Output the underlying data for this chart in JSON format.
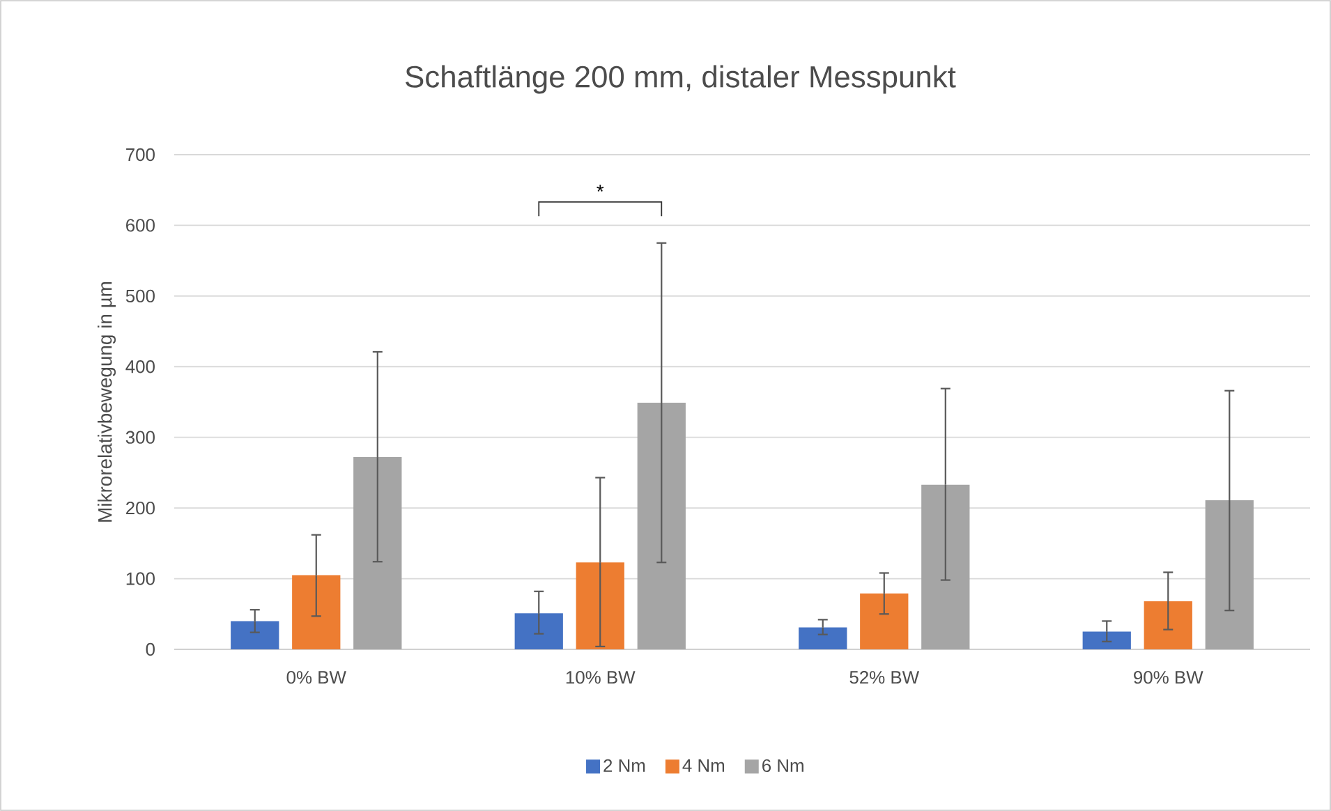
{
  "chart_data": {
    "type": "bar",
    "title": "Schaftlänge 200 mm, distaler Messpunkt",
    "ylabel": "Mikrorelativbewegung in µm",
    "categories": [
      "0% BW",
      "10% BW",
      "52% BW",
      "90% BW"
    ],
    "series": [
      {
        "name": "2 Nm",
        "color": "#4472c4",
        "values": [
          40,
          51,
          31,
          25
        ],
        "errors": [
          [
            24,
            56
          ],
          [
            22,
            82
          ],
          [
            21,
            42
          ],
          [
            11,
            40
          ]
        ]
      },
      {
        "name": "4 Nm",
        "color": "#ed7d31",
        "values": [
          105,
          123,
          79,
          68
        ],
        "errors": [
          [
            47,
            162
          ],
          [
            4,
            243
          ],
          [
            50,
            108
          ],
          [
            28,
            109
          ]
        ]
      },
      {
        "name": "6 Nm",
        "color": "#a5a5a5",
        "values": [
          272,
          349,
          233,
          211
        ],
        "errors": [
          [
            124,
            421
          ],
          [
            123,
            575
          ],
          [
            98,
            369
          ],
          [
            55,
            366
          ]
        ]
      }
    ],
    "ylim": [
      0,
      700
    ],
    "yticks": [
      0,
      100,
      200,
      300,
      400,
      500,
      600,
      700
    ],
    "grid": "y",
    "legend": "bottom",
    "annotations": [
      "*"
    ]
  }
}
